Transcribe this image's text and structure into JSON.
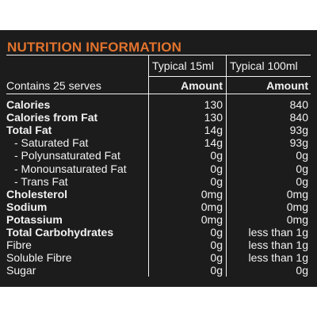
{
  "title": "NUTRITION INFORMATION",
  "header": {
    "serves": "Contains 25 serves",
    "col1": "Typical 15ml",
    "col2": "Typical 100ml",
    "amount1": "Amount",
    "amount2": "Amount"
  },
  "rows": [
    {
      "label": "Calories",
      "v15": "130",
      "v100": "840",
      "bold": true
    },
    {
      "label": "Calories from Fat",
      "v15": "130",
      "v100": "840",
      "bold": true
    },
    {
      "label": "Total Fat",
      "v15": "14g",
      "v100": "93g",
      "bold": true
    },
    {
      "label": "- Saturated Fat",
      "v15": "14g",
      "v100": "93g",
      "bold": false
    },
    {
      "label": "- Polyunsaturated Fat",
      "v15": "0g",
      "v100": "0g",
      "bold": false
    },
    {
      "label": "- Monounsaturated Fat",
      "v15": "0g",
      "v100": "0g",
      "bold": false
    },
    {
      "label": "- Trans Fat",
      "v15": "0g",
      "v100": "0g",
      "bold": false
    },
    {
      "label": "Cholesterol",
      "v15": "0mg",
      "v100": "0mg",
      "bold": true
    },
    {
      "label": "Sodium",
      "v15": "0mg",
      "v100": "0mg",
      "bold": true
    },
    {
      "label": "Potassium",
      "v15": "0mg",
      "v100": "0mg",
      "bold": true
    },
    {
      "label": "Total Carbohydrates",
      "v15": "0g",
      "v100": "less than 1g",
      "bold": true
    },
    {
      "label": "Fibre",
      "v15": "0g",
      "v100": "less than 1g",
      "bold": false
    },
    {
      "label": "Soluble Fibre",
      "v15": "0g",
      "v100": "less than 1g",
      "bold": false
    },
    {
      "label": "Sugar",
      "v15": "0g",
      "v100": "0g",
      "bold": false
    }
  ],
  "colors": {
    "panel": "#1c1c1c",
    "title": "#e2732d",
    "text": "#f2f2f2"
  }
}
